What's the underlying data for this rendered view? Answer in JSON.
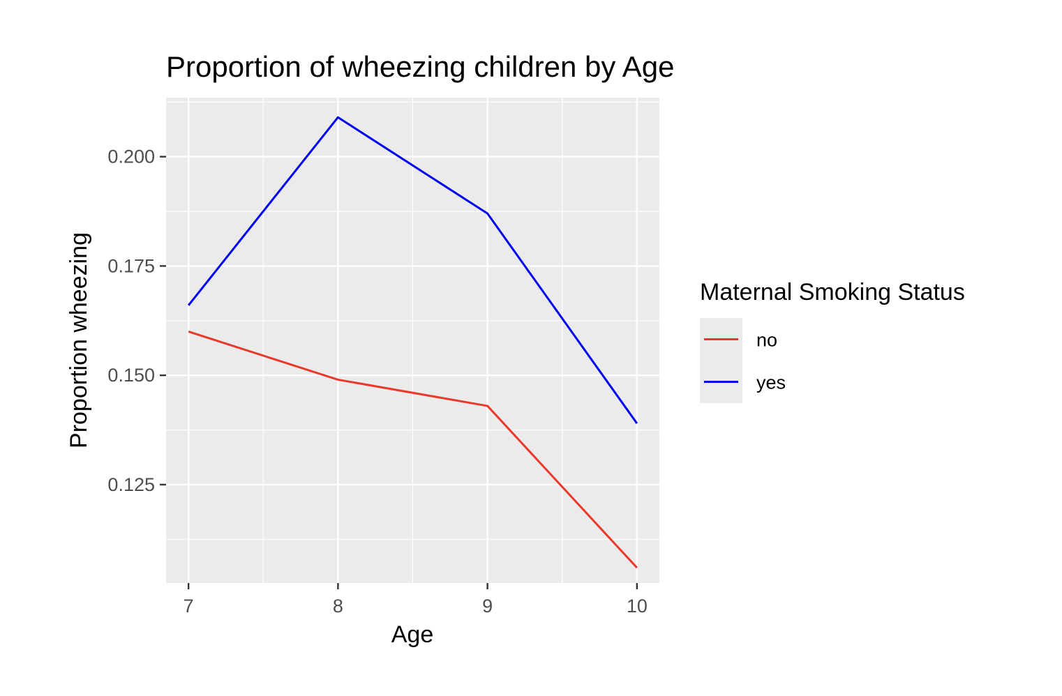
{
  "chart_data": {
    "type": "line",
    "title": "Proportion of wheezing children by Age",
    "xlabel": "Age",
    "ylabel": "Proportion wheezing",
    "x": [
      7,
      8,
      9,
      10
    ],
    "x_ticks": [
      "7",
      "8",
      "9",
      "10"
    ],
    "xlim": [
      6.85,
      10.15
    ],
    "ylim": [
      0.1025,
      0.2135
    ],
    "y_ticks": [
      0.125,
      0.15,
      0.175,
      0.2
    ],
    "y_tick_labels": [
      "0.125",
      "0.150",
      "0.175",
      "0.200"
    ],
    "grid": true,
    "legend": {
      "title": "Maternal Smoking Status",
      "position": "right"
    },
    "series": [
      {
        "name": "no",
        "color": "#e8392b",
        "values": [
          0.16,
          0.149,
          0.143,
          0.106
        ]
      },
      {
        "name": "yes",
        "color": "#0000f0",
        "values": [
          0.166,
          0.209,
          0.187,
          0.139
        ]
      }
    ]
  },
  "colors": {
    "panel_background": "#ebebeb",
    "legend_key_background": "#ebebeb"
  }
}
